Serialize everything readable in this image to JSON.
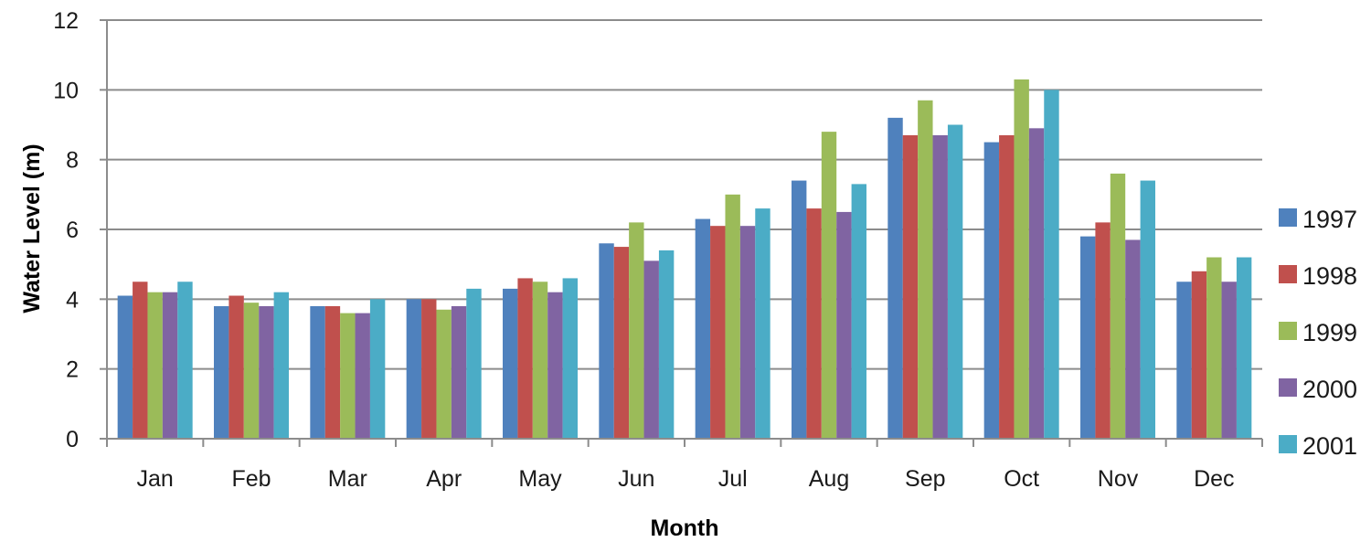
{
  "chart_data": {
    "type": "bar",
    "title": "",
    "xlabel": "Month",
    "ylabel": "Water Level (m)",
    "ylim": [
      0,
      12
    ],
    "yticks": [
      0,
      2,
      4,
      6,
      8,
      10,
      12
    ],
    "grid": true,
    "legend_position": "right",
    "categories": [
      "Jan",
      "Feb",
      "Mar",
      "Apr",
      "May",
      "Jun",
      "Jul",
      "Aug",
      "Sep",
      "Oct",
      "Nov",
      "Dec"
    ],
    "series": [
      {
        "name": "1997",
        "color": "#4F81BD",
        "values": [
          4.1,
          3.8,
          3.8,
          4.0,
          4.3,
          5.6,
          6.3,
          7.4,
          9.2,
          8.5,
          5.8,
          4.5
        ]
      },
      {
        "name": "1998",
        "color": "#C0504D",
        "values": [
          4.5,
          4.1,
          3.8,
          4.0,
          4.6,
          5.5,
          6.1,
          6.6,
          8.7,
          8.7,
          6.2,
          4.8
        ]
      },
      {
        "name": "1999",
        "color": "#9BBB59",
        "values": [
          4.2,
          3.9,
          3.6,
          3.7,
          4.5,
          6.2,
          7.0,
          8.8,
          9.7,
          10.3,
          7.6,
          5.2
        ]
      },
      {
        "name": "2000",
        "color": "#8064A2",
        "values": [
          4.2,
          3.8,
          3.6,
          3.8,
          4.2,
          5.1,
          6.1,
          6.5,
          8.7,
          8.9,
          5.7,
          4.5
        ]
      },
      {
        "name": "2001",
        "color": "#4BACC6",
        "values": [
          4.5,
          4.2,
          4.0,
          4.3,
          4.6,
          5.4,
          6.6,
          7.3,
          9.0,
          10.0,
          7.4,
          5.2
        ]
      }
    ]
  }
}
